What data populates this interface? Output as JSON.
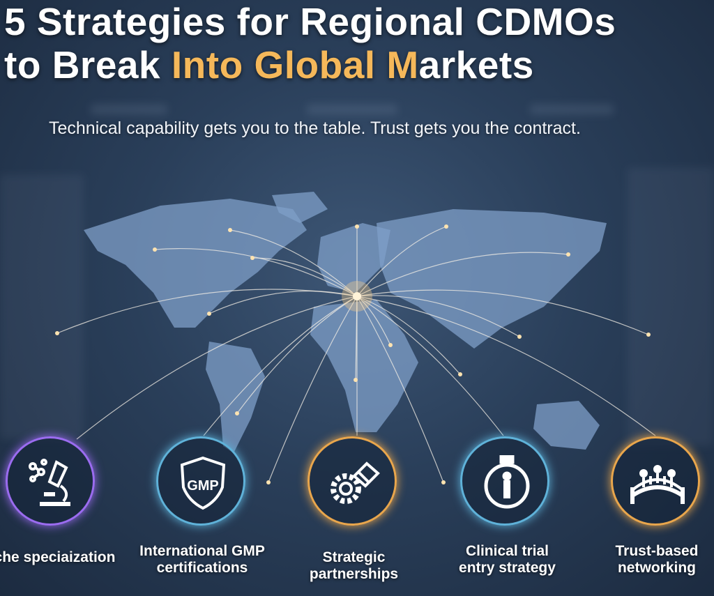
{
  "title": {
    "line1": "5 Strategies for Regional CDMOs",
    "line2_prefix": "to Break ",
    "line2_highlight": "Into Global M",
    "line2_suffix": "arkets"
  },
  "subtitle": "Technical capability gets you to the table. Trust gets you the contract.",
  "colors": {
    "highlight": "#f5b85a",
    "purple": "#9b6cf0",
    "blue": "#5fb2d9",
    "orange": "#e9a64c",
    "background": "#2a3f5a"
  },
  "strategies": [
    {
      "label": "Niche speciaization",
      "icon": "microscope-molecule-icon",
      "ring_color": "purple"
    },
    {
      "label": "International GMP certifications",
      "icon": "gmp-shield-icon",
      "icon_text": "GMP",
      "ring_color": "blue"
    },
    {
      "label": "Strategic partnerships",
      "icon": "gear-handshake-icon",
      "ring_color": "orange"
    },
    {
      "label": "Clinical trial entry strategy",
      "icon": "stopwatch-person-icon",
      "ring_color": "blue"
    },
    {
      "label": "Trust-based networking",
      "icon": "bridge-people-icon",
      "ring_color": "orange"
    }
  ]
}
